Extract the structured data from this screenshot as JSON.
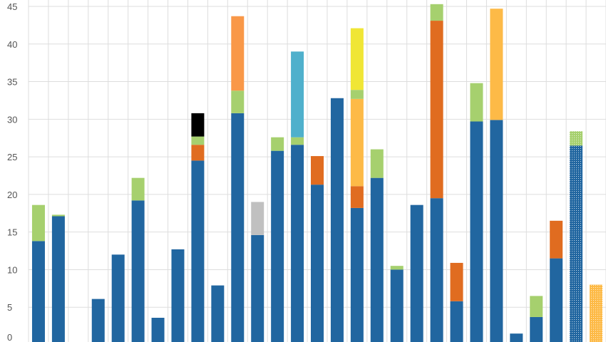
{
  "chart_data": {
    "type": "bar",
    "stacked": true,
    "grid": true,
    "ylim": [
      0,
      45
    ],
    "yticks": [
      "0",
      "5",
      "10",
      "15",
      "20",
      "25",
      "30",
      "35",
      "40",
      "45"
    ],
    "colors": {
      "blue": "#2166a0",
      "green": "#a6d06e",
      "orange": "#e06c20",
      "lightorange": "#f99848",
      "black": "#000000",
      "gray": "#c0c0c0",
      "teal": "#4fb0cc",
      "gold": "#fdba47",
      "yellow": "#f0e635"
    },
    "bars": [
      {
        "segments": [
          {
            "v": 13.8,
            "c": "blue"
          },
          {
            "v": 4.8,
            "c": "green"
          }
        ]
      },
      {
        "segments": [
          {
            "v": 17.1,
            "c": "blue"
          },
          {
            "v": 0.2,
            "c": "green"
          }
        ]
      },
      {
        "segments": []
      },
      {
        "segments": [
          {
            "v": 6.1,
            "c": "blue"
          }
        ]
      },
      {
        "segments": [
          {
            "v": 12.0,
            "c": "blue"
          }
        ]
      },
      {
        "segments": [
          {
            "v": 19.2,
            "c": "blue"
          },
          {
            "v": 3.0,
            "c": "green"
          }
        ]
      },
      {
        "segments": [
          {
            "v": 3.6,
            "c": "blue"
          }
        ]
      },
      {
        "segments": [
          {
            "v": 12.7,
            "c": "blue"
          }
        ]
      },
      {
        "segments": [
          {
            "v": 24.5,
            "c": "blue"
          },
          {
            "v": 2.1,
            "c": "orange"
          },
          {
            "v": 1.1,
            "c": "green"
          },
          {
            "v": 3.1,
            "c": "black"
          }
        ]
      },
      {
        "segments": [
          {
            "v": 7.9,
            "c": "blue"
          }
        ]
      },
      {
        "segments": [
          {
            "v": 30.8,
            "c": "blue"
          },
          {
            "v": 3.0,
            "c": "green"
          },
          {
            "v": 9.9,
            "c": "lightorange"
          }
        ]
      },
      {
        "segments": [
          {
            "v": 14.6,
            "c": "blue"
          },
          {
            "v": 4.4,
            "c": "gray"
          }
        ]
      },
      {
        "segments": [
          {
            "v": 25.8,
            "c": "blue"
          },
          {
            "v": 1.8,
            "c": "green"
          }
        ]
      },
      {
        "segments": [
          {
            "v": 26.6,
            "c": "blue"
          },
          {
            "v": 1.0,
            "c": "green"
          },
          {
            "v": 11.4,
            "c": "teal"
          }
        ]
      },
      {
        "segments": [
          {
            "v": 21.3,
            "c": "blue"
          },
          {
            "v": 3.8,
            "c": "orange"
          }
        ]
      },
      {
        "segments": [
          {
            "v": 32.8,
            "c": "blue"
          }
        ]
      },
      {
        "segments": [
          {
            "v": 18.2,
            "c": "blue"
          },
          {
            "v": 2.9,
            "c": "orange"
          },
          {
            "v": 11.6,
            "c": "gold"
          },
          {
            "v": 1.2,
            "c": "green"
          },
          {
            "v": 8.2,
            "c": "yellow"
          }
        ]
      },
      {
        "segments": [
          {
            "v": 22.2,
            "c": "blue"
          },
          {
            "v": 3.8,
            "c": "green"
          }
        ]
      },
      {
        "segments": [
          {
            "v": 10.0,
            "c": "blue"
          },
          {
            "v": 0.5,
            "c": "green"
          }
        ]
      },
      {
        "segments": [
          {
            "v": 18.6,
            "c": "blue"
          }
        ]
      },
      {
        "segments": [
          {
            "v": 19.5,
            "c": "blue"
          },
          {
            "v": 23.6,
            "c": "orange"
          },
          {
            "v": 2.2,
            "c": "green"
          }
        ]
      },
      {
        "segments": [
          {
            "v": 5.8,
            "c": "blue"
          },
          {
            "v": 5.1,
            "c": "orange"
          }
        ]
      },
      {
        "segments": [
          {
            "v": 29.7,
            "c": "blue"
          },
          {
            "v": 5.1,
            "c": "green"
          }
        ]
      },
      {
        "segments": [
          {
            "v": 29.9,
            "c": "blue"
          },
          {
            "v": 14.8,
            "c": "gold"
          }
        ]
      },
      {
        "segments": [
          {
            "v": 1.5,
            "c": "blue"
          }
        ]
      },
      {
        "segments": [
          {
            "v": 3.7,
            "c": "blue"
          },
          {
            "v": 2.8,
            "c": "green"
          }
        ]
      },
      {
        "segments": [
          {
            "v": 11.5,
            "c": "blue"
          },
          {
            "v": 5.0,
            "c": "orange"
          }
        ]
      },
      {
        "segments": [
          {
            "v": 26.5,
            "c": "blue",
            "pattern": true
          },
          {
            "v": 1.9,
            "c": "green",
            "pattern": true
          }
        ]
      },
      {
        "segments": [
          {
            "v": 8.0,
            "c": "gold",
            "pattern": true
          }
        ]
      }
    ]
  }
}
